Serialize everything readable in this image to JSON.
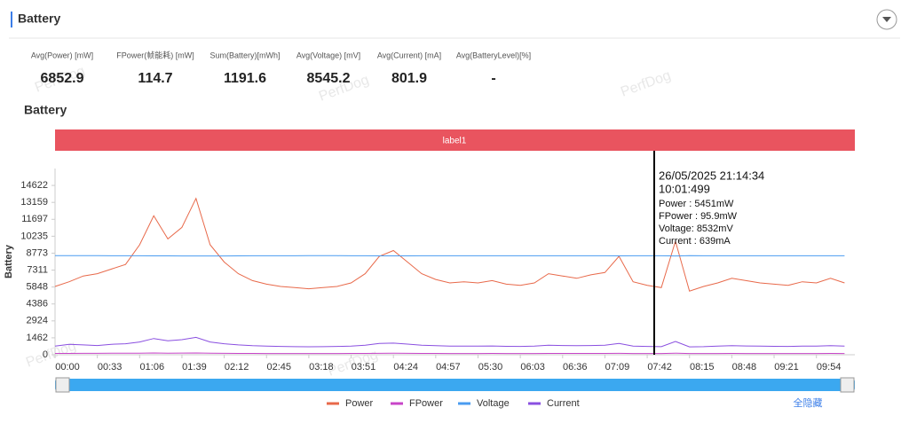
{
  "header": {
    "title": "Battery"
  },
  "watermark": "PerfDog",
  "stats": [
    {
      "label": "Avg(Power) [mW]",
      "value": 6852.9
    },
    {
      "label": "FPower(帧能耗) [mW]",
      "value": 114.7
    },
    {
      "label": "Sum(Battery)[mWh]",
      "value": 1191.6
    },
    {
      "label": "Avg(Voltage) [mV]",
      "value": 8545.2
    },
    {
      "label": "Avg(Current) [mA]",
      "value": 801.9
    },
    {
      "label": "Avg(BatteryLevel)[%]",
      "value": "-"
    }
  ],
  "chart_data": {
    "type": "line",
    "title": "Battery",
    "band_label": "label1",
    "y_label": "Battery",
    "xlim": [
      0,
      624
    ],
    "xticks": [
      {
        "value": 0,
        "label": "00:00"
      },
      {
        "value": 33,
        "label": "00:33"
      },
      {
        "value": 66,
        "label": "01:06"
      },
      {
        "value": 99,
        "label": "01:39"
      },
      {
        "value": 132,
        "label": "02:12"
      },
      {
        "value": 165,
        "label": "02:45"
      },
      {
        "value": 198,
        "label": "03:18"
      },
      {
        "value": 231,
        "label": "03:51"
      },
      {
        "value": 264,
        "label": "04:24"
      },
      {
        "value": 297,
        "label": "04:57"
      },
      {
        "value": 330,
        "label": "05:30"
      },
      {
        "value": 363,
        "label": "06:03"
      },
      {
        "value": 396,
        "label": "06:36"
      },
      {
        "value": 429,
        "label": "07:09"
      },
      {
        "value": 462,
        "label": "07:42"
      },
      {
        "value": 495,
        "label": "08:15"
      },
      {
        "value": 528,
        "label": "08:48"
      },
      {
        "value": 561,
        "label": "09:21"
      },
      {
        "value": 594,
        "label": "09:54"
      }
    ],
    "ylim": [
      0,
      16084
    ],
    "yticks": [
      0,
      1462,
      2924,
      4386,
      5848,
      7311,
      8773,
      10235,
      11697,
      13159,
      14622
    ],
    "x": [
      0,
      11,
      22,
      33,
      44,
      55,
      66,
      77,
      88,
      99,
      110,
      121,
      132,
      143,
      154,
      165,
      176,
      187,
      198,
      209,
      220,
      231,
      242,
      253,
      264,
      275,
      286,
      297,
      308,
      319,
      330,
      341,
      352,
      363,
      374,
      385,
      396,
      407,
      418,
      429,
      440,
      451,
      462,
      473,
      484,
      495,
      506,
      517,
      528,
      539,
      550,
      561,
      572,
      583,
      594,
      605,
      616
    ],
    "series": [
      {
        "name": "Power",
        "color": "#e8694a",
        "values": [
          5900,
          6300,
          6800,
          7000,
          7400,
          7800,
          9500,
          12000,
          10000,
          11000,
          13500,
          9500,
          8000,
          7000,
          6400,
          6100,
          5900,
          5800,
          5700,
          5800,
          5900,
          6200,
          7000,
          8500,
          9000,
          8000,
          7000,
          6500,
          6200,
          6300,
          6200,
          6400,
          6100,
          6000,
          6200,
          7000,
          6800,
          6600,
          6900,
          7100,
          8500,
          6300,
          6000,
          5800,
          9800,
          5500,
          5900,
          6200,
          6600,
          6400,
          6200,
          6100,
          6000,
          6300,
          6200,
          6600,
          6200
        ]
      },
      {
        "name": "FPower",
        "color": "#c845c8",
        "values": [
          115,
          118,
          120,
          125,
          130,
          135,
          140,
          150,
          140,
          145,
          150,
          130,
          120,
          115,
          112,
          110,
          108,
          108,
          106,
          108,
          110,
          112,
          118,
          125,
          130,
          120,
          115,
          112,
          110,
          110,
          110,
          112,
          110,
          108,
          110,
          115,
          114,
          112,
          114,
          116,
          125,
          110,
          108,
          106,
          140,
          104,
          108,
          110,
          112,
          110,
          108,
          108,
          106,
          110,
          108,
          112,
          110
        ]
      },
      {
        "name": "Voltage",
        "color": "#4a9cf0",
        "values": [
          8560,
          8560,
          8555,
          8555,
          8550,
          8550,
          8545,
          8540,
          8540,
          8535,
          8530,
          8530,
          8535,
          8540,
          8545,
          8548,
          8550,
          8550,
          8552,
          8552,
          8552,
          8550,
          8545,
          8540,
          8538,
          8540,
          8545,
          8548,
          8550,
          8550,
          8550,
          8550,
          8550,
          8550,
          8550,
          8548,
          8548,
          8548,
          8548,
          8546,
          8540,
          8548,
          8550,
          8550,
          8530,
          8552,
          8550,
          8550,
          8548,
          8548,
          8550,
          8550,
          8550,
          8550,
          8550,
          8548,
          8550
        ]
      },
      {
        "name": "Current",
        "color": "#8a4fe0",
        "values": [
          750,
          900,
          850,
          800,
          900,
          950,
          1100,
          1400,
          1200,
          1300,
          1500,
          1100,
          950,
          850,
          780,
          740,
          720,
          700,
          690,
          700,
          720,
          740,
          820,
          980,
          1000,
          920,
          830,
          780,
          740,
          750,
          740,
          760,
          730,
          720,
          740,
          820,
          800,
          780,
          800,
          830,
          980,
          750,
          720,
          700,
          1150,
          680,
          700,
          740,
          780,
          760,
          740,
          730,
          720,
          750,
          740,
          780,
          740
        ]
      }
    ],
    "tooltip": [
      "26/05/2025 21:14:34",
      "10:01:499",
      "Power    : 5451mW",
      "FPower : 95.9mW",
      "Voltage: 8532mV",
      "Current : 639mA"
    ],
    "hide_all": "全隐藏"
  }
}
